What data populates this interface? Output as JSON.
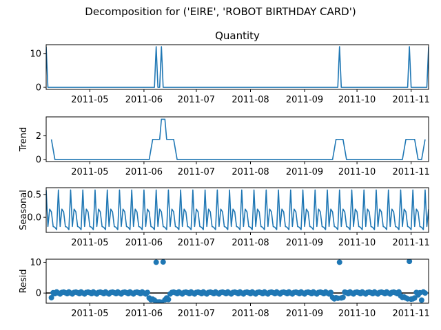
{
  "figure_title": "Decomposition for ('EIRE', 'ROBOT BIRTHDAY CARD')",
  "colors": {
    "line": "#1f77b4",
    "axis": "#000000",
    "zero_line": "#000000"
  },
  "chart_data": [
    {
      "type": "line",
      "title": "Quantity",
      "ylabel": "",
      "xlim": [
        "2011-04-06",
        "2011-11-11"
      ],
      "ylim": [
        -0.6,
        12.6
      ],
      "yticks": [
        0,
        10
      ],
      "x_tick_labels": [
        "2011-05",
        "2011-06",
        "2011-07",
        "2011-08",
        "2011-09",
        "2011-10",
        "2011-11"
      ],
      "series": [
        {
          "x": [
            "2011-04-06",
            "2011-04-07",
            "2011-06-07",
            "2011-06-08",
            "2011-06-09",
            "2011-06-10",
            "2011-06-11",
            "2011-06-12",
            "2011-09-20",
            "2011-09-21",
            "2011-09-22",
            "2011-10-30",
            "2011-10-31",
            "2011-11-01",
            "2011-11-10",
            "2011-11-11"
          ],
          "values": [
            12,
            0,
            0,
            12,
            0,
            0,
            12,
            0,
            0,
            12,
            0,
            0,
            12,
            0,
            0,
            12
          ]
        }
      ]
    },
    {
      "type": "line",
      "title": "",
      "ylabel": "Trend",
      "xlim": [
        "2011-04-06",
        "2011-11-11"
      ],
      "ylim": [
        -0.17,
        3.6
      ],
      "yticks": [
        0,
        2
      ],
      "x_tick_labels": [
        "2011-05",
        "2011-06",
        "2011-07",
        "2011-08",
        "2011-09",
        "2011-10",
        "2011-11"
      ],
      "series": [
        {
          "x": [
            "2011-04-09",
            "2011-04-11",
            "2011-06-04",
            "2011-06-06",
            "2011-06-10",
            "2011-06-11",
            "2011-06-13",
            "2011-06-14",
            "2011-06-18",
            "2011-06-20",
            "2011-09-17",
            "2011-09-19",
            "2011-09-23",
            "2011-09-25",
            "2011-10-27",
            "2011-10-29",
            "2011-11-03",
            "2011-11-05",
            "2011-11-07",
            "2011-11-09"
          ],
          "values": [
            1.7,
            0,
            0,
            1.7,
            1.7,
            3.4,
            3.4,
            1.7,
            1.7,
            0,
            0,
            1.7,
            1.7,
            0,
            0,
            1.7,
            1.7,
            0,
            0,
            1.7
          ]
        }
      ]
    },
    {
      "type": "line",
      "title": "",
      "ylabel": "Seasonal",
      "xlim": [
        "2011-04-06",
        "2011-11-11"
      ],
      "ylim": [
        -0.33,
        0.65
      ],
      "yticks": [
        0.0,
        0.5
      ],
      "x_tick_labels": [
        "2011-05",
        "2011-06",
        "2011-07",
        "2011-08",
        "2011-09",
        "2011-10",
        "2011-11"
      ],
      "period": 7,
      "pattern": [
        0.6,
        -0.2,
        0.18,
        0.12,
        -0.2,
        -0.22,
        -0.27
      ],
      "series": [
        {
          "start": "2011-04-06",
          "end": "2011-11-11"
        }
      ]
    },
    {
      "type": "scatter",
      "title": "",
      "ylabel": "Resid",
      "xlim": [
        "2011-04-06",
        "2011-11-11"
      ],
      "ylim": [
        -3.3,
        11.0
      ],
      "yticks": [
        0,
        10
      ],
      "x_tick_labels": [
        "2011-05",
        "2011-06",
        "2011-07",
        "2011-08",
        "2011-09",
        "2011-10",
        "2011-11"
      ],
      "baseline": 0,
      "series": [
        {
          "x": [
            "2011-04-09",
            "2011-06-04",
            "2011-06-05",
            "2011-06-06",
            "2011-06-07",
            "2011-06-08",
            "2011-06-09",
            "2011-06-10",
            "2011-06-11",
            "2011-06-12",
            "2011-06-13",
            "2011-06-14",
            "2011-06-15",
            "2011-09-17",
            "2011-09-18",
            "2011-09-19",
            "2011-09-20",
            "2011-09-21",
            "2011-09-22",
            "2011-09-23",
            "2011-10-26",
            "2011-10-27",
            "2011-10-28",
            "2011-10-29",
            "2011-10-30",
            "2011-10-31",
            "2011-11-01",
            "2011-11-02",
            "2011-11-03",
            "2011-11-05",
            "2011-11-07"
          ],
          "values": [
            -1.5,
            -1.6,
            -2.2,
            -2.0,
            -2.3,
            10.0,
            -2.9,
            -2.9,
            -3.0,
            10.1,
            -2.2,
            -1.6,
            -2.1,
            -1.4,
            -1.9,
            -1.5,
            -1.7,
            10.0,
            -1.6,
            -1.4,
            -0.9,
            -1.4,
            -1.3,
            -1.6,
            -1.9,
            10.3,
            -2.0,
            -1.9,
            -1.6,
            -0.6,
            -2.3
          ]
        }
      ],
      "baseline_noise": [
        0.3,
        0.1,
        -0.2,
        0.35,
        0.0,
        -0.3,
        0.2
      ]
    }
  ]
}
